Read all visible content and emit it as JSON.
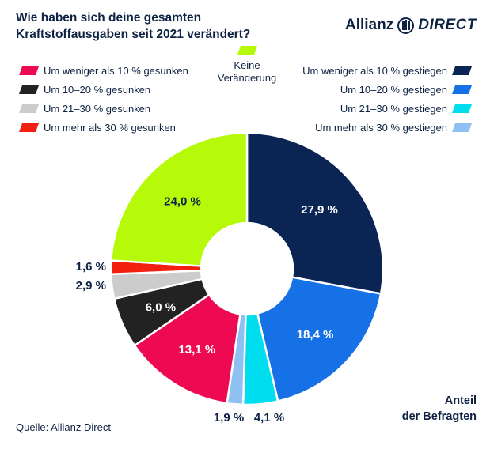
{
  "title": "Wie haben sich deine gesamten Kraftstoffausgaben seit 2021 verändert?",
  "brand": {
    "name": "Allianz",
    "sub": "DIRECT"
  },
  "colors": {
    "navy": "#0a2454",
    "blue": "#1670e6",
    "cyan": "#00ddee",
    "lightblue": "#8ec0f2",
    "pink": "#ee0a52",
    "black": "#222222",
    "gray": "#cccccc",
    "red": "#f22010",
    "green": "#b6fa0a"
  },
  "legend": {
    "left": [
      {
        "label": "Um weniger als 10 % gesunken",
        "color": "#ee0a52"
      },
      {
        "label": "Um 10–20 % gesunken",
        "color": "#222222"
      },
      {
        "label": "Um 21–30 % gesunken",
        "color": "#cccccc"
      },
      {
        "label": "Um mehr als 30 % gesunken",
        "color": "#f22010"
      }
    ],
    "center": {
      "label_line1": "Keine",
      "label_line2": "Veränderung",
      "color": "#b6fa0a"
    },
    "right": [
      {
        "label": "Um weniger als 10 % gestiegen",
        "color": "#0a2454"
      },
      {
        "label": "Um 10–20 % gestiegen",
        "color": "#1670e6"
      },
      {
        "label": "Um 21–30 % gestiegen",
        "color": "#00ddee"
      },
      {
        "label": "Um mehr als 30 % gestiegen",
        "color": "#8ec0f2"
      }
    ]
  },
  "chart_data": {
    "type": "pie",
    "subtype": "donut",
    "categories": [
      "Um weniger als 10 % gestiegen",
      "Um 10–20 % gestiegen",
      "Um 21–30 % gestiegen",
      "Um mehr als 30 % gestiegen",
      "Um weniger als 10 % gesunken",
      "Um 10–20 % gesunken",
      "Um 21–30 % gesunken",
      "Um mehr als 30 % gesunken",
      "Keine Veränderung"
    ],
    "values": [
      27.9,
      18.4,
      4.1,
      1.9,
      13.1,
      6.0,
      2.9,
      1.6,
      24.0
    ],
    "labels": [
      "27,9 %",
      "18,4 %",
      "4,1 %",
      "1,9 %",
      "13,1 %",
      "6,0 %",
      "2,9 %",
      "1,6 %",
      "24,0 %"
    ],
    "colors": [
      "#0a2454",
      "#1670e6",
      "#00ddee",
      "#8ec0f2",
      "#ee0a52",
      "#222222",
      "#cccccc",
      "#f22010",
      "#b6fa0a"
    ],
    "label_text_colors": [
      "#ffffff",
      "#ffffff",
      "#0e2244",
      "#0e2244",
      "#ffffff",
      "#ffffff",
      "#0e2244",
      "#0e2244",
      "#0e2244"
    ],
    "label_outside": [
      false,
      false,
      true,
      true,
      false,
      false,
      true,
      true,
      false
    ],
    "unit": "%",
    "start": "12 o'clock, clockwise"
  },
  "axis_caption_line1": "Anteil",
  "axis_caption_line2": "der Befragten",
  "source": "Quelle: Allianz Direct"
}
